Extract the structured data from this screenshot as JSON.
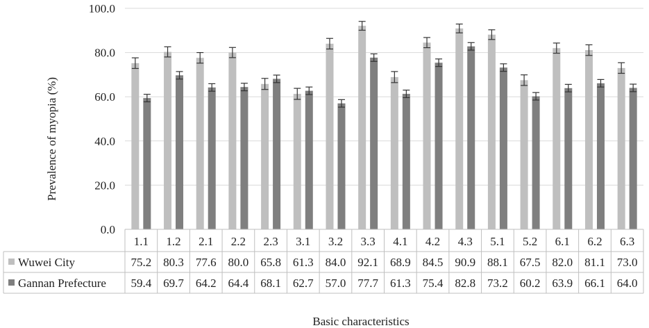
{
  "chart_data": {
    "type": "bar",
    "ylabel": "Prevalence of myopia (%)",
    "xlabel": "Basic characteristics",
    "ylim": [
      0,
      100
    ],
    "yticks": [
      0,
      20,
      40,
      60,
      80,
      100
    ],
    "ytick_labels": [
      "0.0",
      "20.0",
      "40.0",
      "60.0",
      "80.0",
      "100.0"
    ],
    "grid": true,
    "legend": "data-table",
    "categories": [
      "1.1",
      "1.2",
      "2.1",
      "2.2",
      "2.3",
      "3.1",
      "3.2",
      "3.3",
      "4.1",
      "4.2",
      "4.3",
      "5.1",
      "5.2",
      "6.1",
      "6.2",
      "6.3"
    ],
    "series": [
      {
        "name": "Wuwei City",
        "color": "#bfbfbf",
        "values": [
          75.2,
          80.3,
          77.6,
          80.0,
          65.8,
          61.3,
          84.0,
          92.1,
          68.9,
          84.5,
          90.9,
          88.1,
          67.5,
          82.0,
          81.1,
          73.0
        ],
        "labels": [
          "75.2",
          "80.3",
          "77.6",
          "80.0",
          "65.8",
          "61.3",
          "84.0",
          "92.1",
          "68.9",
          "84.5",
          "90.9",
          "88.1",
          "67.5",
          "82.0",
          "81.1",
          "73.0"
        ],
        "errors": [
          2.4,
          2.3,
          2.4,
          2.3,
          2.5,
          2.5,
          2.4,
          2.0,
          2.5,
          2.3,
          2.0,
          2.2,
          2.4,
          2.3,
          2.4,
          2.4
        ]
      },
      {
        "name": "Gannan Prefecture",
        "color": "#7f7f7f",
        "values": [
          59.4,
          69.7,
          64.2,
          64.4,
          68.1,
          62.7,
          57.0,
          77.7,
          61.3,
          75.4,
          82.8,
          73.2,
          60.2,
          63.9,
          66.1,
          64.0
        ],
        "labels": [
          "59.4",
          "69.7",
          "64.2",
          "64.4",
          "68.1",
          "62.7",
          "57.0",
          "77.7",
          "61.3",
          "75.4",
          "82.8",
          "73.2",
          "60.2",
          "63.9",
          "66.1",
          "64.0"
        ],
        "errors": [
          1.7,
          1.7,
          1.7,
          1.7,
          1.7,
          1.7,
          1.7,
          1.7,
          1.7,
          1.7,
          1.7,
          1.7,
          1.7,
          1.7,
          1.7,
          1.7
        ]
      }
    ]
  }
}
